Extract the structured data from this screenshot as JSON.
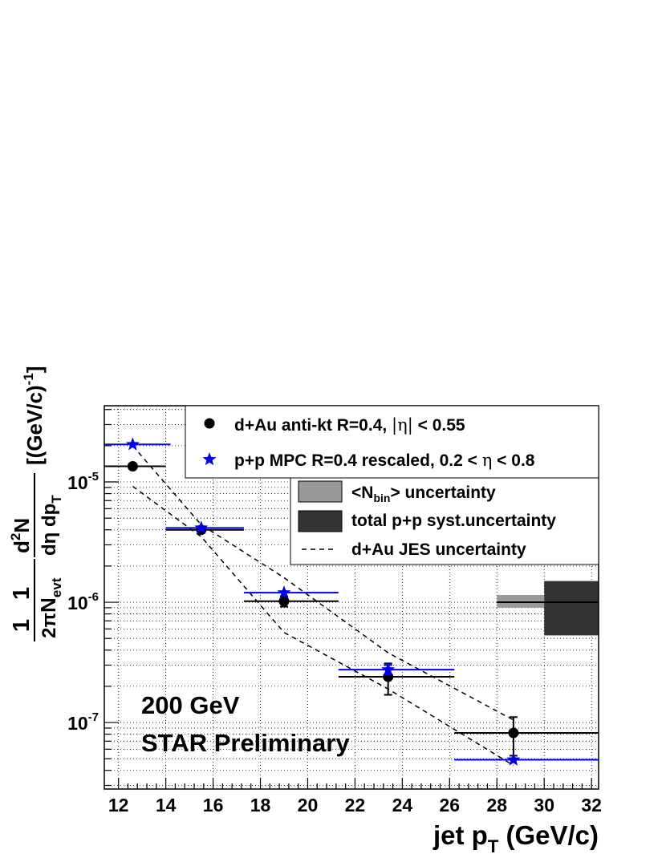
{
  "chart_data": {
    "type": "scatter",
    "x_axis": {
      "label_main": "jet p",
      "label_sub": "T",
      "label_unit": " (GeV/c)",
      "range": [
        11.4,
        32.3
      ],
      "ticks": [
        12,
        14,
        16,
        18,
        20,
        22,
        24,
        26,
        28,
        30,
        32
      ],
      "tick_labels": [
        "12",
        "14",
        "16",
        "18",
        "20",
        "22",
        "24",
        "26",
        "28",
        "30",
        "32"
      ]
    },
    "y_axis": {
      "scale": "log",
      "range": [
        2.8e-08,
        4.3e-05
      ],
      "ticks": [
        1e-07,
        1e-06,
        1e-05
      ],
      "tick_labels": [
        {
          "base": "10",
          "exp": "-7"
        },
        {
          "base": "10",
          "exp": "-6"
        },
        {
          "base": "10",
          "exp": "-5"
        }
      ],
      "label": {
        "one": "1",
        "two_pi": "2π",
        "n": "N",
        "evt": "evt",
        "d": "d",
        "sq": "2",
        "N2": "N",
        "deta_dpt": "dη dp",
        "T": "T",
        "units": "[(GeV/c)",
        "minus_one": "-1",
        "close": "]"
      }
    },
    "grid": true,
    "series": [
      {
        "name": "dAu",
        "color": "#000000",
        "marker": "circle",
        "points": [
          {
            "x": 12.6,
            "y": 1.35e-05,
            "xlo": 11.4,
            "xhi": 14.0,
            "ylo": 1.31e-05,
            "yhi": 1.39e-05
          },
          {
            "x": 15.5,
            "y": 4e-06,
            "xlo": 14.0,
            "xhi": 17.3,
            "ylo": 3.88e-06,
            "yhi": 4.12e-06
          },
          {
            "x": 19.0,
            "y": 1.02e-06,
            "xlo": 17.3,
            "xhi": 21.3,
            "ylo": 9.2e-07,
            "yhi": 1.12e-06
          },
          {
            "x": 23.4,
            "y": 2.4e-07,
            "xlo": 21.3,
            "xhi": 26.2,
            "ylo": 1.7e-07,
            "yhi": 3.1e-07
          },
          {
            "x": 28.7,
            "y": 8.2e-08,
            "xlo": 26.2,
            "xhi": 32.3,
            "ylo": 5.3e-08,
            "yhi": 1.11e-07
          }
        ]
      },
      {
        "name": "pp",
        "color": "#0000ee",
        "marker": "star",
        "points": [
          {
            "x": 12.6,
            "y": 2.05e-05,
            "xlo": 11.4,
            "xhi": 14.2,
            "ylo": 1.95e-05,
            "yhi": 2.25e-05
          },
          {
            "x": 15.5,
            "y": 4.15e-06,
            "xlo": 14.0,
            "xhi": 17.3,
            "ylo": 4e-06,
            "yhi": 4.3e-06
          },
          {
            "x": 19.0,
            "y": 1.2e-06,
            "xlo": 17.3,
            "xhi": 21.3,
            "ylo": 1.17e-06,
            "yhi": 1.23e-06
          },
          {
            "x": 23.4,
            "y": 2.75e-07,
            "xlo": 21.3,
            "xhi": 26.2,
            "ylo": 2.5e-07,
            "yhi": 3e-07
          },
          {
            "x": 28.7,
            "y": 4.9e-08,
            "xlo": 26.2,
            "xhi": 32.3,
            "ylo": 4.8e-08,
            "yhi": 5e-08
          }
        ]
      }
    ],
    "jes_band": {
      "upper": [
        {
          "x": 12.6,
          "y": 2e-05
        },
        {
          "x": 15.5,
          "y": 4.4e-06
        },
        {
          "x": 19.0,
          "y": 1.6e-06
        },
        {
          "x": 23.4,
          "y": 3.8e-07
        },
        {
          "x": 28.7,
          "y": 1.05e-07
        }
      ],
      "lower": [
        {
          "x": 12.6,
          "y": 9.2e-06
        },
        {
          "x": 15.5,
          "y": 3.5e-06
        },
        {
          "x": 19.0,
          "y": 5.6e-07
        },
        {
          "x": 23.4,
          "y": 1.9e-07
        },
        {
          "x": 28.7,
          "y": 4.4e-08
        }
      ]
    },
    "norm_uncertainty_boxes": [
      {
        "name": "nbin",
        "color": "#999999",
        "x0": 28.0,
        "x1": 30.0,
        "y0": 9e-07,
        "y1": 1.15e-06
      },
      {
        "name": "pp-syst",
        "color": "#333333",
        "x0": 30.0,
        "x1": 32.3,
        "y0": 5.3e-07,
        "y1": 1.5e-06
      },
      {
        "name": "unity-line",
        "color": "#000000",
        "x0": 28.0,
        "x1": 32.3,
        "y": 1e-06
      }
    ],
    "legend_top": {
      "entry1": {
        "pre": "d+Au anti-kt R=0.4, ",
        "abs_l": "|",
        "eta": "η",
        "abs_r": "|",
        "post": " < 0.55"
      },
      "entry2": {
        "pre": "p+p MPC R=0.4 rescaled, 0.2 < ",
        "eta": "η",
        "post": " < 0.8"
      }
    },
    "legend_bottom": {
      "entry1": {
        "pre": "<N",
        "sub": "bin",
        "post": "> uncertainty"
      },
      "entry2": {
        "text": "total p+p syst.uncertainty"
      },
      "entry3": {
        "text": "d+Au JES uncertainty"
      }
    },
    "annotations": {
      "energy": "200 GeV",
      "preliminary": "STAR Preliminary"
    }
  }
}
